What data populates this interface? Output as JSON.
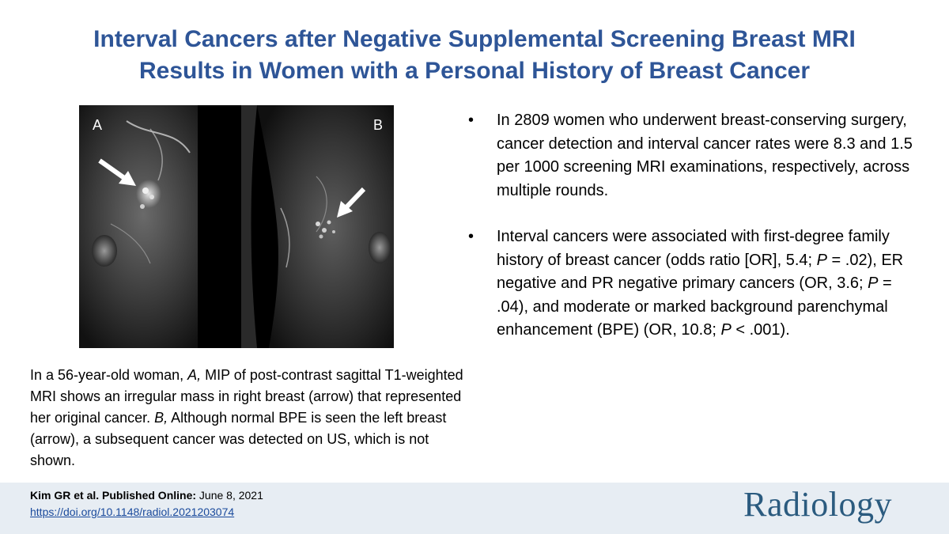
{
  "title": {
    "line1": "Interval Cancers after Negative Supplemental Screening Breast MRI",
    "line2": "Results in Women with a Personal History of Breast Cancer"
  },
  "figure": {
    "label_a": "A",
    "label_b": "B"
  },
  "caption": {
    "part1": "In a 56-year-old woman, ",
    "a_italic": "A,",
    "part2": " MIP of post-contrast sagittal T1-weighted MRI shows an irregular mass in right breast (arrow) that represented her original cancer.  ",
    "b_italic": "B,",
    "part3": " Although normal BPE is seen the left breast (arrow), a subsequent cancer was detected on US, which is not shown."
  },
  "bullets": {
    "marker": "•",
    "item1": "In 2809 women who underwent breast-conserving surgery, cancer detection and interval cancer rates were 8.3 and 1.5 per 1000 screening MRI examinations, respectively, across multiple rounds.",
    "item2": {
      "t1": "Interval cancers were associated with first-degree family history of breast cancer (odds ratio [OR], 5.4; ",
      "p1": "P",
      "t2": " = .02), ER negative and PR negative primary cancers (OR, 3.6; ",
      "p2": "P",
      "t3": " = .04), and moderate or marked background parenchymal enhancement (BPE)  (OR, 10.8; ",
      "p3": "P",
      "t4": " < .001)."
    }
  },
  "footer": {
    "cite_bold": "Kim GR et al. Published Online:",
    "cite_date": " June 8, 2021",
    "doi": "https://doi.org/10.1148/radiol.2021203074",
    "logo": "Radiology"
  },
  "colors": {
    "title": "#2e5597",
    "footer_bg": "#e7edf3",
    "logo": "#2b5b7f",
    "link": "#1a4a9c"
  }
}
